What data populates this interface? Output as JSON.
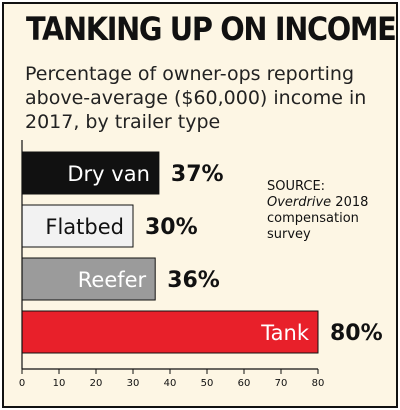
{
  "title": "TANKING UP ON INCOME",
  "subtitle": "Percentage of owner-ops reporting above-average ($60,000) income in 2017, by trailer type",
  "source": {
    "prefix": "SOURCE:",
    "publication": "Overdrive",
    "suffix": " 2018 compensation survey"
  },
  "chart_data": {
    "type": "bar",
    "orientation": "horizontal",
    "title": "TANKING UP ON INCOME",
    "categories": [
      "Dry van",
      "Flatbed",
      "Reefer",
      "Tank"
    ],
    "values": [
      37,
      30,
      36,
      80
    ],
    "value_labels": [
      "37%",
      "30%",
      "36%",
      "80%"
    ],
    "bar_colors": [
      "#111111",
      "#f2f2f2",
      "#9b9b9b",
      "#e8202a"
    ],
    "label_colors": [
      "#ffffff",
      "#111111",
      "#ffffff",
      "#ffffff"
    ],
    "xlim": [
      0,
      80
    ],
    "xticks": [
      0,
      10,
      20,
      30,
      40,
      50,
      60,
      70,
      80
    ],
    "grid": false,
    "legend": "none"
  }
}
